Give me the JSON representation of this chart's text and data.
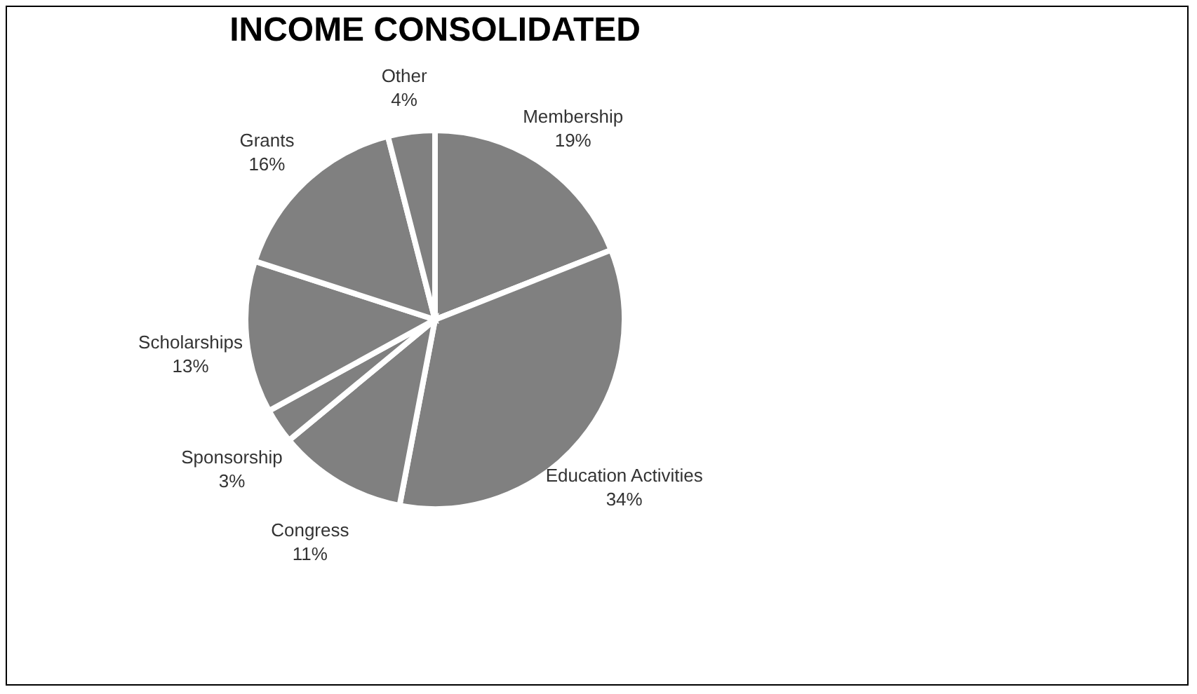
{
  "chart_data": {
    "type": "pie",
    "title": "INCOME CONSOLIDATED",
    "categories": [
      "Membership",
      "Education Activities",
      "Congress",
      "Sponsorship",
      "Scholarships",
      "Grants",
      "Other"
    ],
    "values": [
      19,
      34,
      11,
      3,
      13,
      16,
      4
    ],
    "value_labels": [
      "19%",
      "34%",
      "11%",
      "3%",
      "13%",
      "16%",
      "4%"
    ],
    "colors": [
      "#808080",
      "#808080",
      "#808080",
      "#808080",
      "#808080",
      "#808080",
      "#808080"
    ],
    "legend": false
  }
}
